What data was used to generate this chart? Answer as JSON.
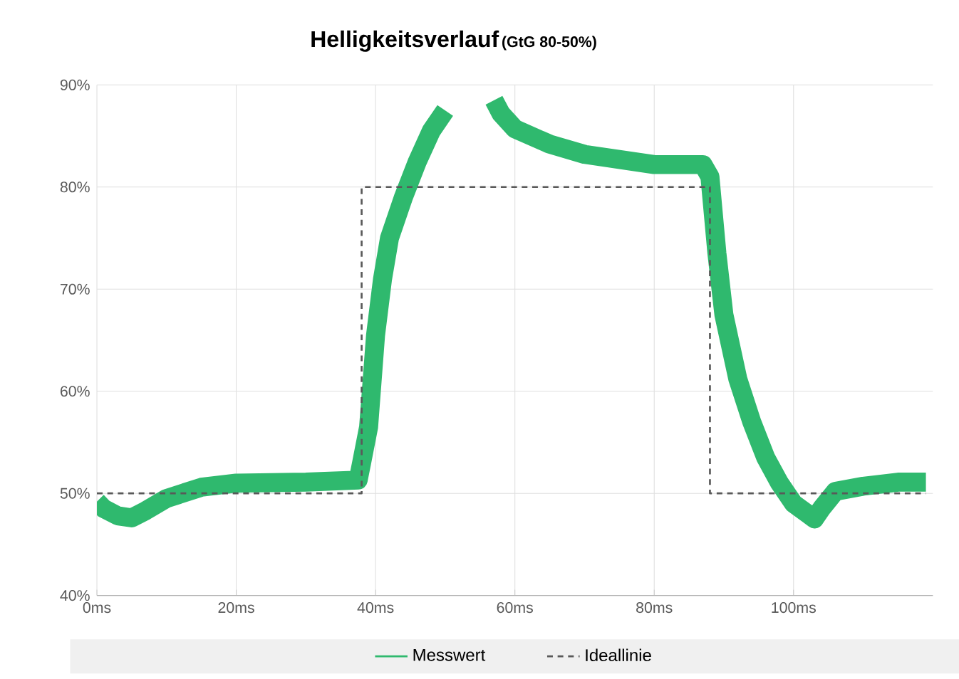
{
  "chart_data": {
    "type": "line",
    "title": "Helligkeitsverlauf",
    "subtitle": "(GtG 80-50%)",
    "xlim": [
      0,
      120
    ],
    "ylim": [
      40,
      90
    ],
    "xticks": [
      {
        "value": 0,
        "label": "0ms"
      },
      {
        "value": 20,
        "label": "20ms"
      },
      {
        "value": 40,
        "label": "40ms"
      },
      {
        "value": 60,
        "label": "60ms"
      },
      {
        "value": 80,
        "label": "80ms"
      },
      {
        "value": 100,
        "label": "100ms"
      }
    ],
    "yticks": [
      {
        "value": 40,
        "label": "40%"
      },
      {
        "value": 50,
        "label": "50%"
      },
      {
        "value": 60,
        "label": "60%"
      },
      {
        "value": 70,
        "label": "70%"
      },
      {
        "value": 80,
        "label": "80%"
      },
      {
        "value": 90,
        "label": "90%"
      }
    ],
    "grid": true,
    "legend": "bottom",
    "series": [
      {
        "name": "Messwert",
        "color": "#2fb96e",
        "line_style": "solid",
        "x": [
          0,
          1,
          3,
          5,
          7,
          10,
          15,
          20,
          30,
          37.5,
          38,
          39,
          40,
          41,
          42,
          44,
          46,
          48,
          50,
          52,
          54,
          56,
          57,
          58,
          60,
          65,
          70,
          75,
          80,
          87,
          88,
          89,
          90,
          92,
          94,
          96,
          98,
          100,
          102,
          103,
          104,
          106,
          110,
          115,
          119
        ],
        "values": [
          49.2,
          48.5,
          47.8,
          47.6,
          48.3,
          49.5,
          50.6,
          51,
          51.1,
          51.3,
          53,
          56.5,
          65.5,
          71,
          75,
          79,
          82.5,
          85.5,
          87.5,
          null,
          null,
          null,
          88.5,
          87.2,
          85.7,
          84.2,
          83.2,
          82.7,
          82.2,
          82.2,
          81,
          73.5,
          67.5,
          61.2,
          57,
          53.5,
          51,
          49,
          48,
          47.5,
          48.5,
          50.2,
          50.7,
          51.1,
          51.1
        ]
      },
      {
        "name": "Ideallinie",
        "color": "#595959",
        "line_style": "dashed",
        "x": [
          0,
          38,
          38,
          88,
          88,
          119
        ],
        "values": [
          50,
          50,
          80,
          80,
          50,
          50
        ]
      }
    ]
  }
}
